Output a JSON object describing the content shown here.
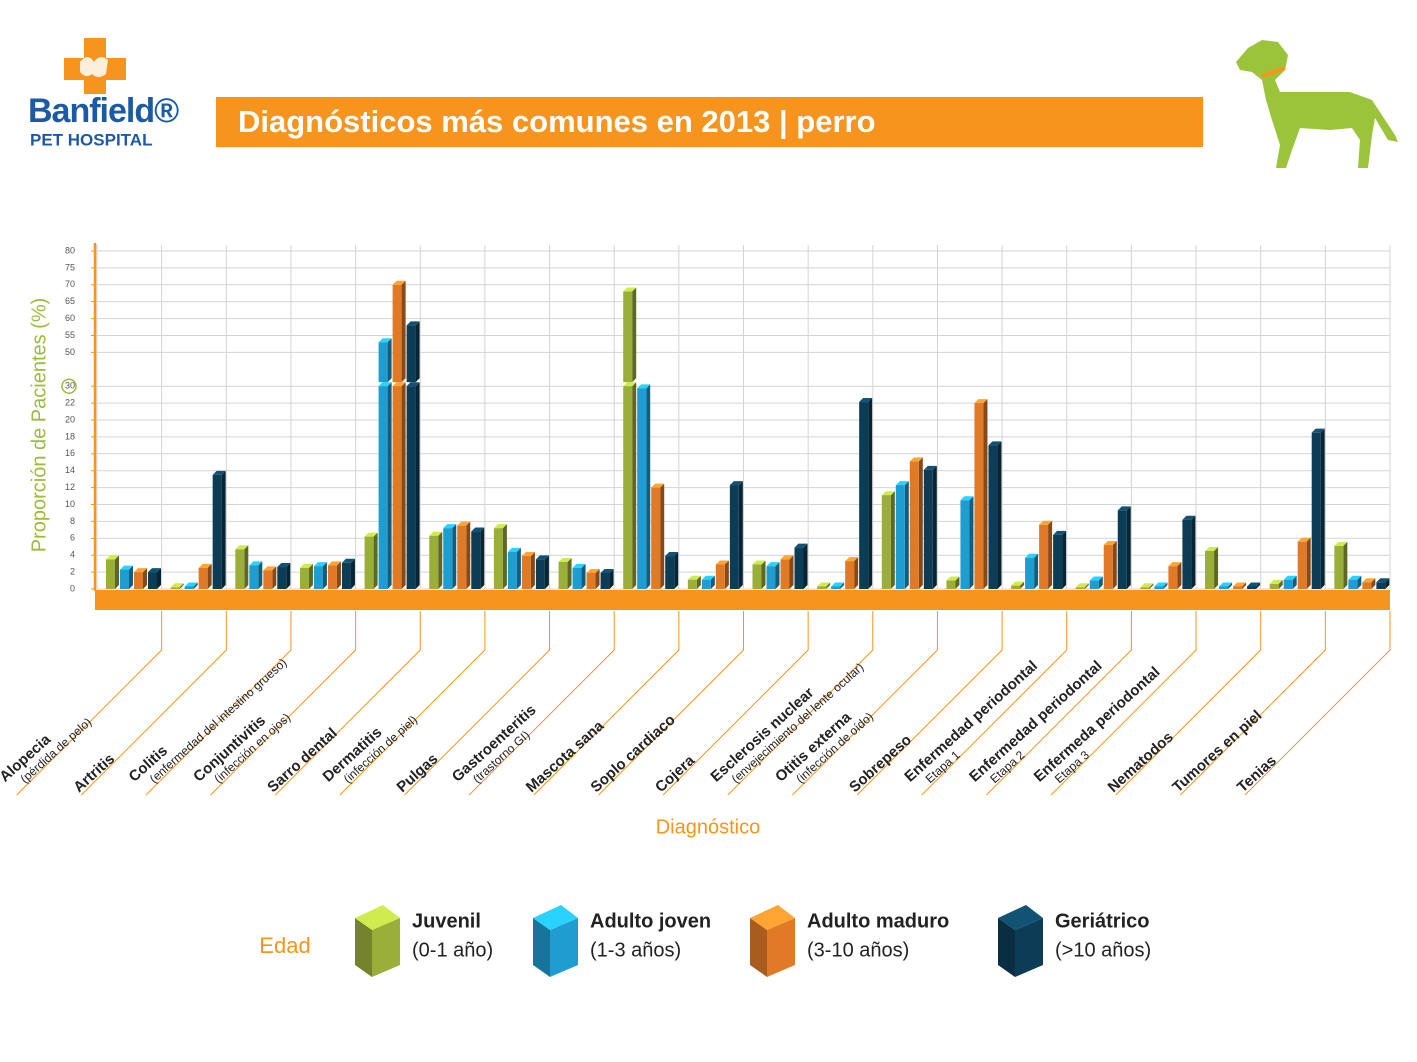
{
  "header": {
    "logo_name": "Banfield®",
    "logo_subtitle": "PET HOSPITAL"
  },
  "chart_data": {
    "type": "bar",
    "title": "Diagnósticos más comunes en 2013 | perro",
    "x_label": "Diagnóstico",
    "y_label": "Proporción de Pacientes (%)",
    "legend_title": "Edad",
    "categories": [
      "Alopecia",
      "Artritis",
      "Colitis",
      "Conjuntivitis",
      "Sarro dental",
      "Dermatitis",
      "Pulgas",
      "Gastroenteritis",
      "Mascota sana",
      "Soplo cardiaco",
      "Cojera",
      "Esclerosis nuclear",
      "Otitis externa",
      "Sobrepeso",
      "Enfermedad periodontal",
      "Enfermedad periodontal",
      "Enfermeda periodontal",
      "Nematodos",
      "Tumores en piel",
      "Tenias"
    ],
    "category_notes": [
      "(pérdida de pelo)",
      null,
      "(enfermedad del intestino grueso)",
      "(infección en ojos)",
      null,
      "(infección de piel)",
      null,
      "(trastorno GI)",
      null,
      null,
      null,
      "(envejecimiento del lente ocular)",
      "(infección de oído)",
      null,
      "Etapa 1",
      "Etapa 2",
      "Etapa 3",
      null,
      null,
      null
    ],
    "series": [
      {
        "name": "Juvenil",
        "range": "(0-1 año)",
        "color": "#9aae3a",
        "values": [
          3.5,
          0.2,
          4.7,
          2.5,
          6.2,
          6.3,
          7.2,
          3.2,
          68,
          1.1,
          2.9,
          0.3,
          11.1,
          1.0,
          0.4,
          0.2,
          0.2,
          4.5,
          0.6,
          5.1
        ]
      },
      {
        "name": "Adulto joven",
        "range": "(1-3 años)",
        "color": "#1f9cd0",
        "values": [
          2.3,
          0.3,
          2.8,
          2.7,
          53,
          7.2,
          4.4,
          2.5,
          29,
          1.1,
          2.7,
          0.3,
          12.3,
          10.5,
          3.7,
          1.0,
          0.3,
          0.3,
          1.1,
          1.1
        ]
      },
      {
        "name": "Adulto maduro",
        "range": "(3-10 años)",
        "color": "#e07a26",
        "values": [
          2.0,
          2.5,
          2.2,
          2.8,
          70,
          7.5,
          3.9,
          1.9,
          12,
          2.9,
          3.5,
          3.3,
          15.1,
          22,
          7.6,
          5.2,
          2.7,
          0.3,
          5.6,
          0.8
        ]
      },
      {
        "name": "Geriátrico",
        "range": "(>10 años)",
        "color": "#0d3d56",
        "values": [
          2.0,
          13.5,
          2.6,
          3.1,
          58,
          6.8,
          3.5,
          1.9,
          3.9,
          12.3,
          4.9,
          22.5,
          14.1,
          17,
          6.4,
          9.3,
          8.2,
          0.3,
          18.5,
          0.8
        ]
      }
    ],
    "ylim": [
      0,
      80
    ],
    "yticks": [
      0,
      2,
      4,
      6,
      8,
      10,
      12,
      14,
      16,
      18,
      20,
      22,
      30,
      50,
      55,
      60,
      65,
      70,
      75,
      80
    ],
    "ybreak": [
      30,
      50
    ],
    "grid": true
  }
}
